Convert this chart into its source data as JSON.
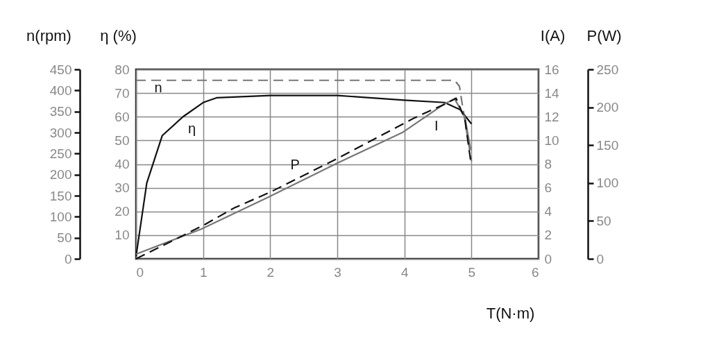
{
  "chart_data": [
    {
      "type": "line",
      "xlabel": "T(N·m)",
      "ylabel": "η (%)",
      "y2label": "n(rpm)",
      "y3label": "I(A)",
      "xlim": [
        0,
        6
      ],
      "xticks": [
        0,
        1,
        2,
        3,
        4,
        5,
        6
      ],
      "ylim": [
        0,
        80
      ],
      "yticks": [
        {
          "value": 0,
          "label": null
        },
        10,
        20,
        30,
        40,
        50,
        60,
        70,
        80
      ],
      "y2lim": [
        0,
        450
      ],
      "y2ticks": [
        0,
        50,
        100,
        150,
        200,
        250,
        300,
        350,
        400,
        450
      ],
      "y3lim": [
        0,
        16
      ],
      "y3ticks": [
        0,
        2,
        4,
        6,
        8,
        10,
        12,
        14,
        16
      ],
      "grid": true,
      "marker": "none",
      "series": [
        {
          "name": "n",
          "color": "#777777",
          "line_style": "dashed",
          "axis": "y2",
          "x": [
            0,
            4.75,
            4.82,
            4.9,
            5.0
          ],
          "values": [
            424,
            424,
            410,
            330,
            232
          ]
        },
        {
          "name": "η",
          "color": "#111111",
          "line_style": "solid",
          "x": [
            0,
            0.16,
            0.39,
            0.7,
            1.0,
            1.2,
            2.0,
            3.0,
            4.0,
            4.6,
            4.83,
            5.0
          ],
          "values": [
            1,
            32,
            52,
            60,
            66,
            68,
            69,
            69,
            67,
            66,
            63,
            57
          ]
        },
        {
          "name": "I",
          "color": "#777777",
          "line_style": "solid",
          "axis": "y3",
          "x": [
            0,
            0.97,
            1.97,
            2.97,
            3.98,
            4.6,
            4.75,
            4.9,
            4.99
          ],
          "values": [
            0.4,
            2.5,
            5.2,
            8,
            10.7,
            13.1,
            13.5,
            12,
            9.2
          ]
        }
      ]
    },
    {
      "type": "line",
      "ylabel": "P(W)",
      "xlim": [
        0,
        6
      ],
      "ylim": [
        0,
        250
      ],
      "yticks": [
        0,
        50,
        100,
        150,
        200,
        250
      ],
      "tick_labels": "y",
      "marker": "none",
      "series": [
        {
          "name": "P",
          "color": "#111111",
          "line_style": "dashed",
          "x": [
            0,
            1,
            1.46,
            2,
            2.97,
            4.15,
            4.6,
            4.77,
            4.9,
            4.99
          ],
          "values": [
            0,
            44,
            67,
            88,
            131,
            186,
            204,
            212,
            185,
            128
          ]
        }
      ]
    }
  ]
}
